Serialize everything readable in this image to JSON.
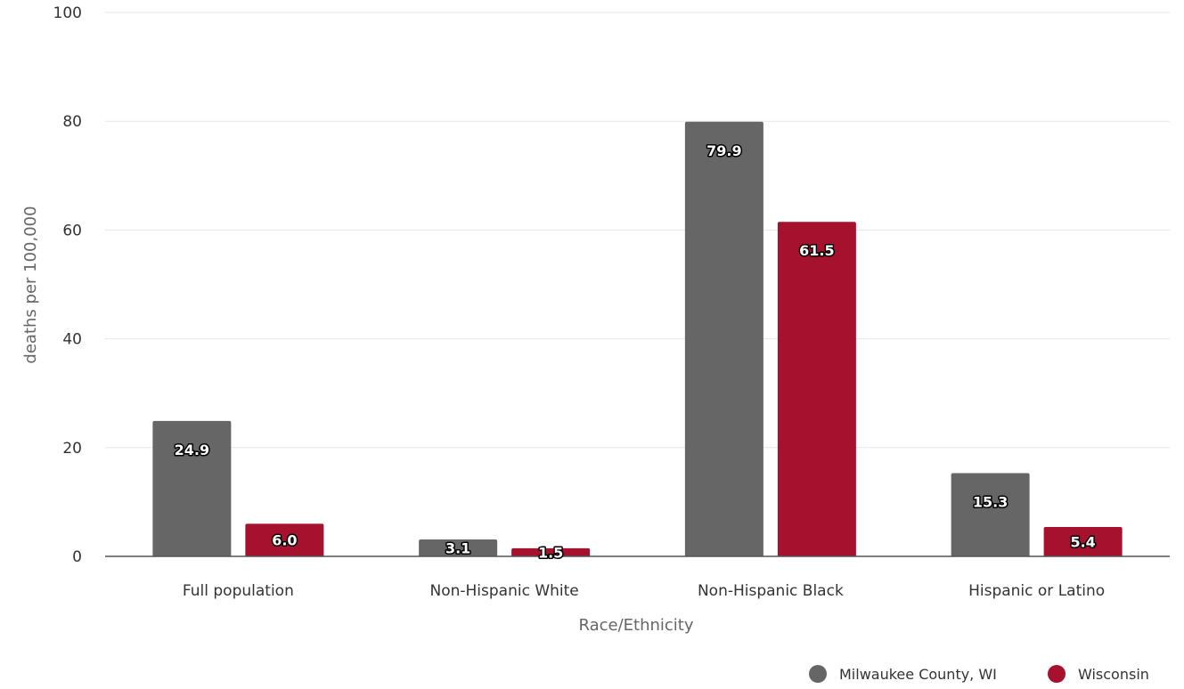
{
  "chart_data": {
    "type": "bar",
    "categories": [
      "Full population",
      "Non-Hispanic White",
      "Non-Hispanic Black",
      "Hispanic or Latino"
    ],
    "series": [
      {
        "name": "Milwaukee County, WI",
        "color": "#666666",
        "values": [
          24.9,
          3.1,
          79.9,
          15.3
        ],
        "labels": [
          "24.9",
          "3.1",
          "79.9",
          "15.3"
        ]
      },
      {
        "name": "Wisconsin",
        "color": "#a6122d",
        "values": [
          6.0,
          1.5,
          61.5,
          5.4
        ],
        "labels": [
          "6.0",
          "1.5",
          "61.5",
          "5.4"
        ]
      }
    ],
    "xlabel": "Race/Ethnicity",
    "ylabel": "deaths per 100,000",
    "ylim": [
      0,
      100
    ],
    "yticks": [
      "0",
      "20",
      "40",
      "60",
      "80",
      "100"
    ],
    "grid": true,
    "legend_position": "bottom-right"
  }
}
